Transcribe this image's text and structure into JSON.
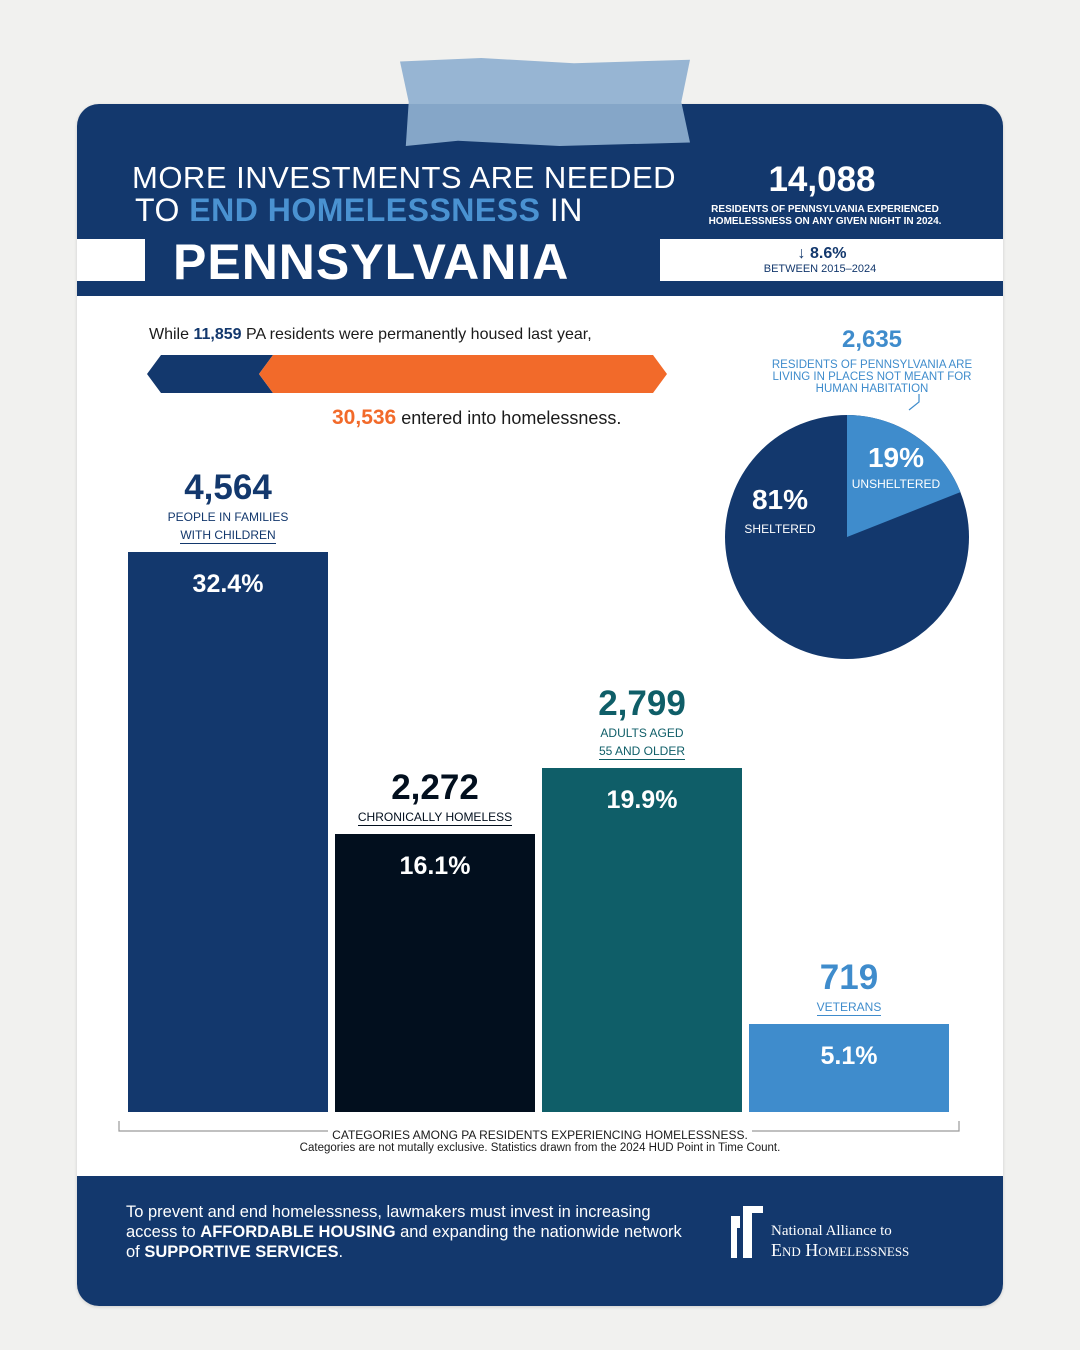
{
  "header": {
    "title_line1": "MORE INVESTMENTS ARE NEEDED",
    "title_line2_a": "TO ",
    "title_line2_b": "END HOMELESSNESS",
    "title_line2_c": " IN",
    "state": "PENNSYLVANIA",
    "total_count": "14,088",
    "total_desc": "RESIDENTS OF PENNSYLVANIA EXPERIENCED HOMELESSNESS ON ANY GIVEN NIGHT IN 2024.",
    "change": "↓ 8.6%",
    "change_period": "BETWEEN 2015–2024"
  },
  "flow": {
    "top_prefix": "While ",
    "housed": "11,859",
    "top_suffix": " PA residents were permanently housed last year,",
    "entered": "30,536",
    "bottom_suffix": " entered into homelessness.",
    "housed_value": 11859,
    "entered_value": 30536,
    "colors": {
      "housed": "#13386d",
      "entered": "#f26a2a"
    }
  },
  "pie": {
    "count": "2,635",
    "desc": "RESIDENTS OF PENNSYLVANIA ARE LIVING IN PLACES NOT MEANT FOR HUMAN HABITATION",
    "sheltered_label": "81%",
    "sheltered_name": "SHELTERED",
    "unsheltered_label": "19%",
    "unsheltered_name": "UNSHELTERED"
  },
  "chart_data": [
    {
      "type": "bar",
      "categories": [
        "PEOPLE IN FAMILIES WITH CHILDREN",
        "CHRONICALLY HOMELESS",
        "ADULTS AGED 55 AND OLDER",
        "VETERANS"
      ],
      "values": [
        32.4,
        16.1,
        19.9,
        5.1
      ],
      "value_labels": [
        "32.4%",
        "16.1%",
        "19.9%",
        "5.1%"
      ],
      "counts": [
        "4,564",
        "2,272",
        "2,799",
        "719"
      ],
      "desc_line1": [
        "PEOPLE IN FAMILIES",
        "CHRONICALLY HOMELESS",
        "ADULTS AGED",
        "VETERANS"
      ],
      "desc_line2": [
        "WITH CHILDREN",
        "",
        "55 AND OLDER",
        ""
      ],
      "colors": [
        "#13386d",
        "#020f1e",
        "#0f5e68",
        "#3f8ccc"
      ],
      "label_colors": [
        "#13386d",
        "#020f1e",
        "#0f5e68",
        "#3f8ccc"
      ],
      "xlabel": "CATEGORIES AMONG PA RESIDENTS EXPERIENCING HOMELESSNESS.",
      "note": "Categories are not mutally exclusive. Statistics drawn from the 2024 HUD Point in Time Count."
    },
    {
      "type": "pie",
      "categories": [
        "SHELTERED",
        "UNSHELTERED"
      ],
      "values": [
        81,
        19
      ],
      "colors": [
        "#13386d",
        "#3f8ccc"
      ]
    }
  ],
  "footer": {
    "text_a": "To prevent and end homelessness, lawmakers must invest in increasing access to ",
    "text_b": "AFFORDABLE HOUSING",
    "text_c": " and expanding the nationwide network of ",
    "text_d": "SUPPORTIVE SERVICES",
    "text_e": ".",
    "logo_line1": "National Alliance to",
    "logo_line2": "End Homelessness"
  }
}
